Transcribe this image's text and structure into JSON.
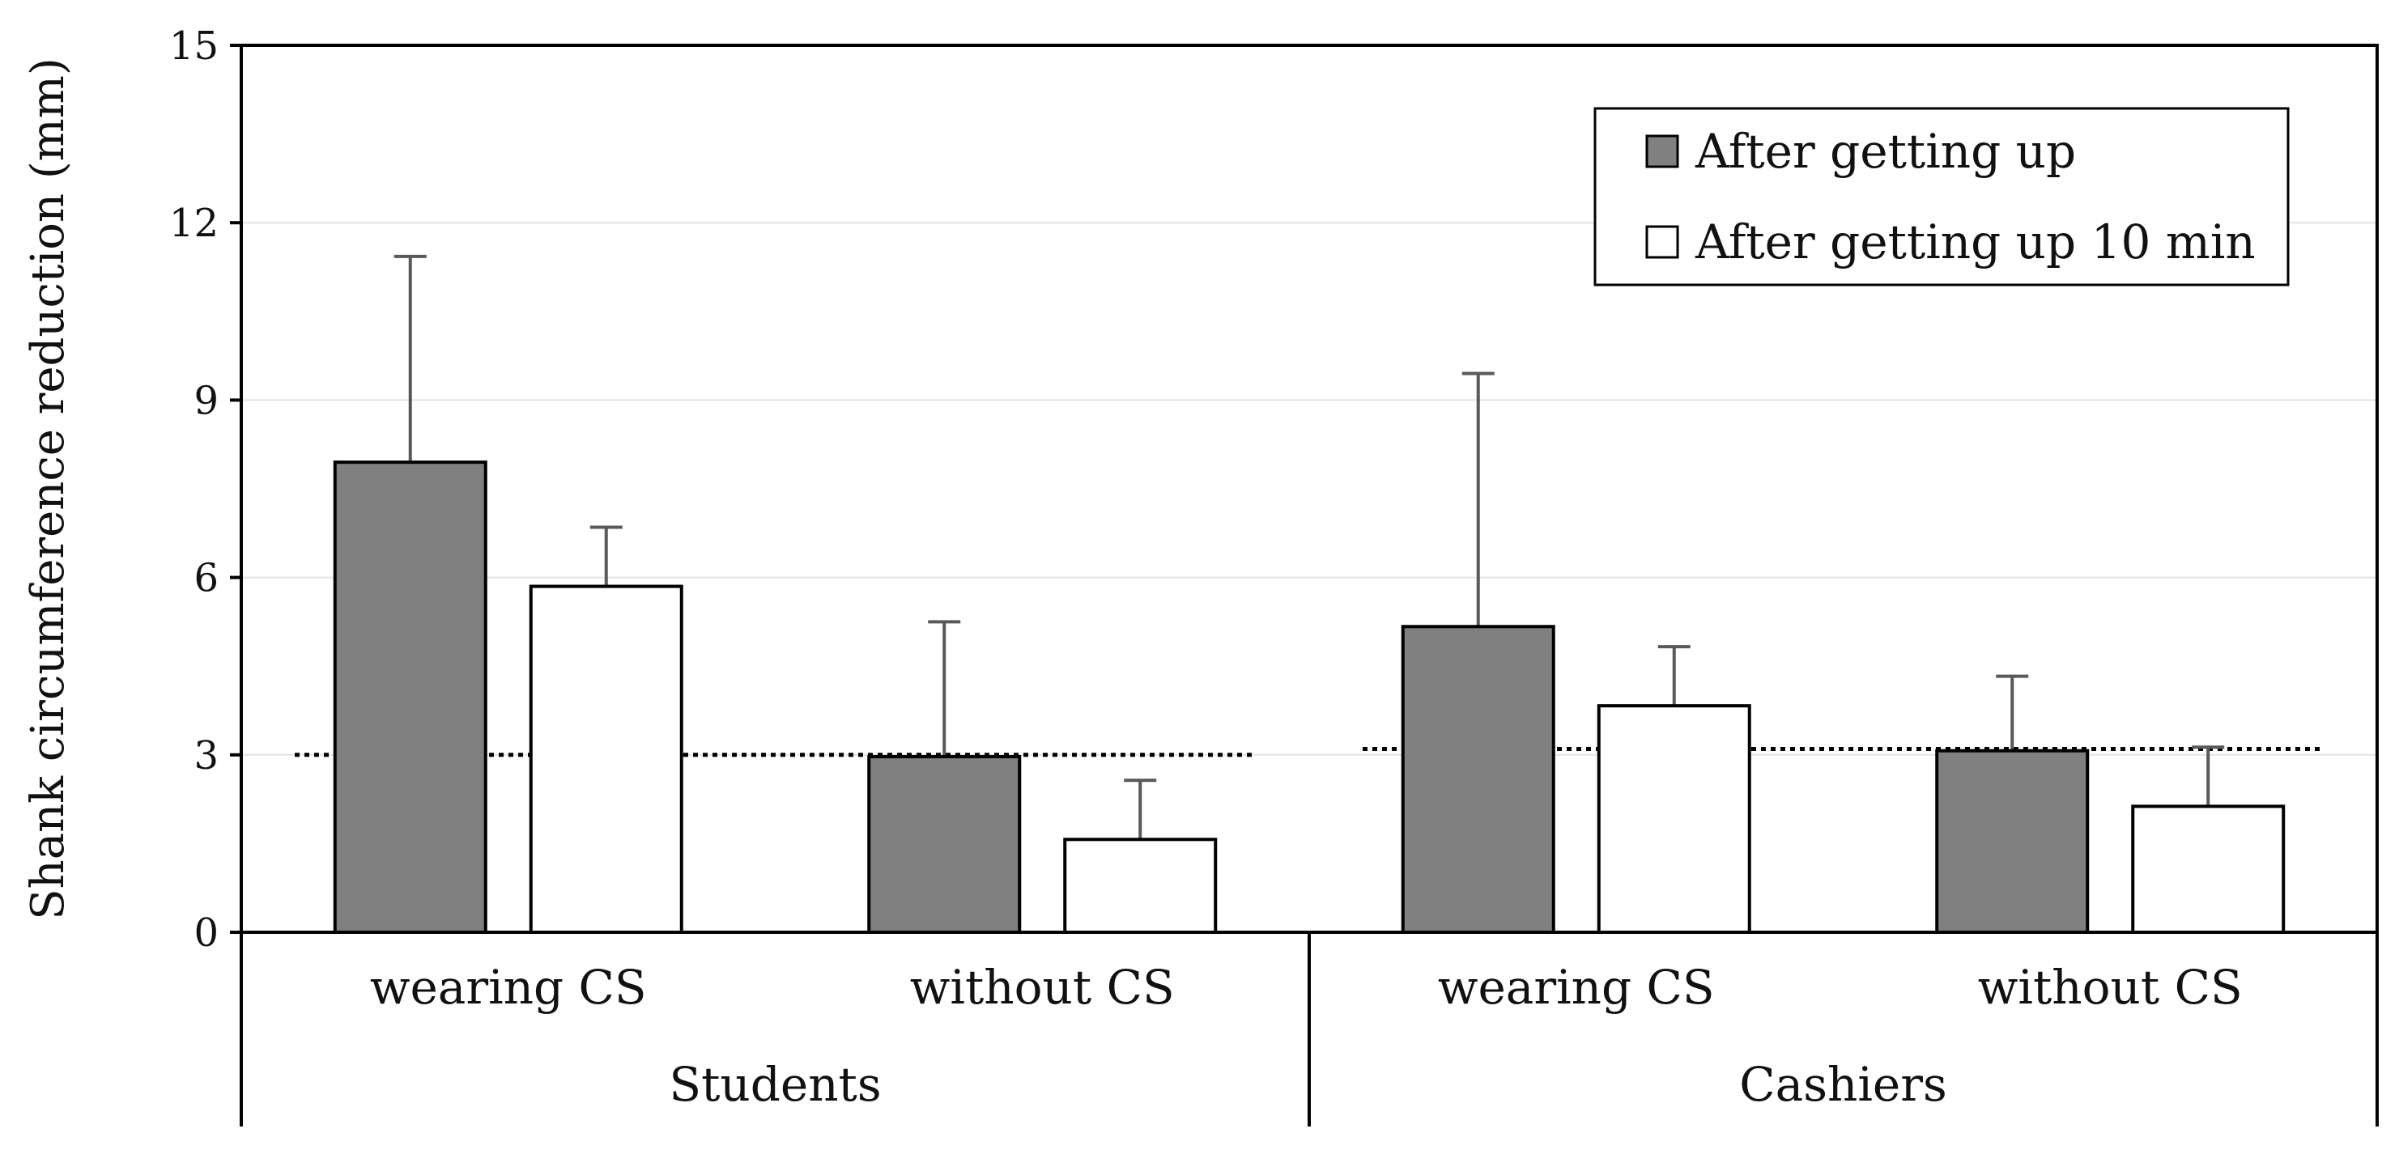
{
  "chart_data": {
    "type": "bar",
    "ylabel": "Shank circumference reduction (mm)",
    "xlabel": "",
    "ylim": [
      0,
      15
    ],
    "yticks": [
      0,
      3,
      6,
      9,
      12,
      15
    ],
    "grid": true,
    "legend_position": "top-right",
    "groups": [
      {
        "label": "Students",
        "categories": [
          "wearing CS",
          "without CS"
        ],
        "reference_line": 3.0
      },
      {
        "label": "Cashiers",
        "categories": [
          "wearing CS",
          "without CS"
        ],
        "reference_line": 3.1
      }
    ],
    "categories": [
      "wearing CS",
      "without CS",
      "wearing CS",
      "without CS"
    ],
    "series": [
      {
        "name": "After getting up",
        "color": "#808080",
        "values": [
          7.95,
          2.97,
          5.17,
          3.07
        ],
        "error_upper": [
          11.43,
          5.25,
          9.45,
          4.33
        ]
      },
      {
        "name": "After getting up 10 min",
        "color": "#ffffff",
        "values": [
          5.85,
          1.57,
          3.83,
          2.13
        ],
        "error_upper": [
          6.85,
          2.57,
          4.83,
          3.13
        ]
      }
    ]
  }
}
